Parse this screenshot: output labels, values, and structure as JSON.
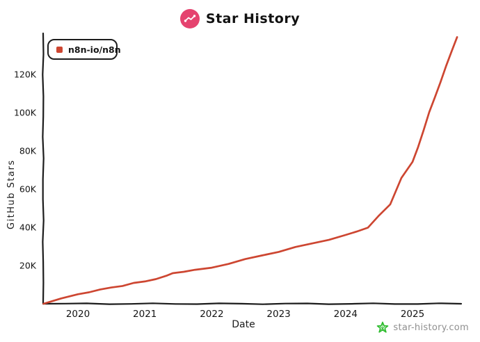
{
  "header": {
    "title": "Star History",
    "logo_icon": "line-chart-logo"
  },
  "legend": {
    "series_label": "n8n-io/n8n"
  },
  "watermark": {
    "text": "star-history.com",
    "icon": "green-star-icon"
  },
  "colors": {
    "series_line": "#cd4631",
    "logo_background": "#e5436f",
    "axis": "#1b1b1b",
    "watermark_text": "#8f8f8f",
    "watermark_star": "#2ebc2e"
  },
  "chart_data": {
    "type": "line",
    "title": "Star History",
    "xlabel": "Date",
    "ylabel": "GitHub Stars",
    "grid": false,
    "legend_position": "top-left",
    "ylim": [
      0,
      140000
    ],
    "xlim": [
      "2019-06",
      "2025-10"
    ],
    "x_ticks": [
      {
        "label": "2020",
        "value": 2020
      },
      {
        "label": "2021",
        "value": 2021
      },
      {
        "label": "2022",
        "value": 2022
      },
      {
        "label": "2023",
        "value": 2023
      },
      {
        "label": "2024",
        "value": 2024
      },
      {
        "label": "2025",
        "value": 2025
      }
    ],
    "y_ticks": [
      {
        "label": "20K",
        "value": 20000
      },
      {
        "label": "40K",
        "value": 40000
      },
      {
        "label": "60K",
        "value": 60000
      },
      {
        "label": "80K",
        "value": 80000
      },
      {
        "label": "100K",
        "value": 100000
      },
      {
        "label": "120K",
        "value": 120000
      }
    ],
    "series": [
      {
        "name": "n8n-io/n8n",
        "color": "#cd4631",
        "points": [
          [
            "2019-06",
            0
          ],
          [
            "2019-08",
            1200
          ],
          [
            "2019-10",
            2600
          ],
          [
            "2020-01",
            5000
          ],
          [
            "2020-03",
            6200
          ],
          [
            "2020-05",
            7300
          ],
          [
            "2020-07",
            8500
          ],
          [
            "2020-09",
            9500
          ],
          [
            "2020-11",
            10700
          ],
          [
            "2021-01",
            11700
          ],
          [
            "2021-03",
            13100
          ],
          [
            "2021-05",
            14600
          ],
          [
            "2021-06",
            16000
          ],
          [
            "2021-08",
            16900
          ],
          [
            "2021-10",
            17600
          ],
          [
            "2022-01",
            18900
          ],
          [
            "2022-04",
            21000
          ],
          [
            "2022-07",
            23200
          ],
          [
            "2022-10",
            25300
          ],
          [
            "2023-01",
            27300
          ],
          [
            "2023-04",
            29500
          ],
          [
            "2023-07",
            31600
          ],
          [
            "2023-10",
            33600
          ],
          [
            "2024-01",
            35800
          ],
          [
            "2024-03",
            37800
          ],
          [
            "2024-05",
            40000
          ],
          [
            "2024-07",
            46000
          ],
          [
            "2024-09",
            52000
          ],
          [
            "2024-11",
            66000
          ],
          [
            "2025-01",
            74000
          ],
          [
            "2025-02",
            82000
          ],
          [
            "2025-03",
            91000
          ],
          [
            "2025-04",
            100000
          ],
          [
            "2025-05",
            108000
          ],
          [
            "2025-06",
            116000
          ],
          [
            "2025-07",
            124000
          ],
          [
            "2025-08",
            132000
          ],
          [
            "2025-09",
            139500
          ]
        ]
      }
    ]
  }
}
